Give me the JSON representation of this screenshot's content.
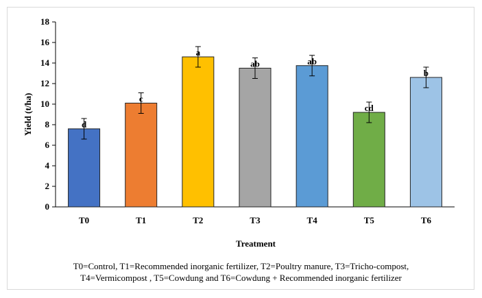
{
  "chart_data": {
    "type": "bar",
    "categories": [
      "T0",
      "T1",
      "T2",
      "T3",
      "T4",
      "T5",
      "T6"
    ],
    "values": [
      7.6,
      10.1,
      14.6,
      13.5,
      13.75,
      9.2,
      12.6
    ],
    "errors": [
      1.0,
      1.0,
      1.0,
      1.0,
      1.0,
      1.0,
      1.0
    ],
    "letters": [
      "d",
      "c",
      "a",
      "ab",
      "ab",
      "cd",
      "b"
    ],
    "colors": [
      "#4472c4",
      "#ed7d31",
      "#ffc000",
      "#a5a5a5",
      "#5b9bd5",
      "#70ad47",
      "#9dc3e6"
    ],
    "xlabel": "Treatment",
    "ylabel": "Yield (t/ha)",
    "ylim": [
      0,
      18
    ],
    "yticks": [
      0,
      2,
      4,
      6,
      8,
      10,
      12,
      14,
      16,
      18
    ],
    "grid": false,
    "legend": "none"
  },
  "caption": {
    "line1": "T0=Control, T1=Recommended inorganic fertilizer, T2=Poultry manure, T3=Tricho-compost,",
    "line2": "T4=Vermicompost  , T5=Cowdung and T6=Cowdung + Recommended inorganic fertilizer"
  }
}
